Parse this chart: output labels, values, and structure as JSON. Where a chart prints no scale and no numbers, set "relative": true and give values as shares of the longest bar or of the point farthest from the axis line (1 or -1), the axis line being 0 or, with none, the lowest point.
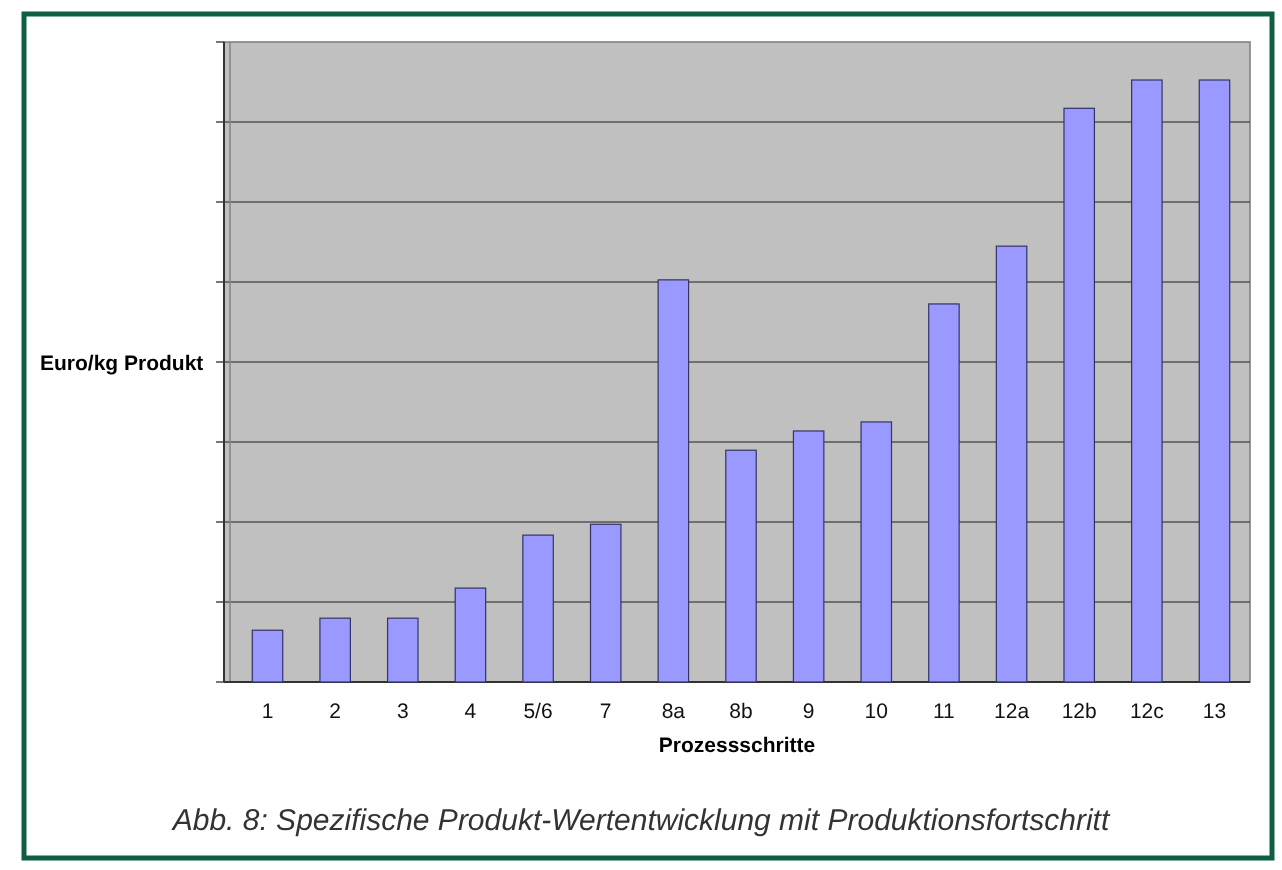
{
  "chart_data": {
    "type": "bar",
    "relative": true,
    "xlabel": "Prozessschritte",
    "ylabel": "Euro/kg Produkt",
    "categories": [
      "1",
      "2",
      "3",
      "4",
      "5/6",
      "7",
      "8a",
      "8b",
      "9",
      "10",
      "11",
      "12a",
      "12b",
      "12c",
      "13"
    ],
    "values": [
      0.086,
      0.106,
      0.106,
      0.156,
      0.244,
      0.262,
      0.668,
      0.385,
      0.417,
      0.432,
      0.628,
      0.724,
      0.953,
      1,
      1
    ],
    "color": "#9999ff",
    "grid": "y",
    "annotations": [
      "Abb. 8: Spezifische Produkt-Wertentwicklung mit Produktionsfortschritt"
    ]
  }
}
